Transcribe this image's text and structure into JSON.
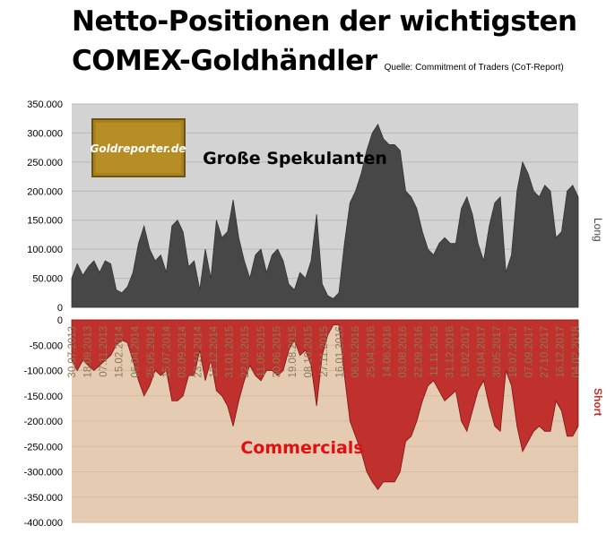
{
  "title_line1": "Netto-Positionen der wichtigsten",
  "title_line2": "COMEX-Goldhändler",
  "source": "Quelle: Commitment of Traders (CoT-Report)",
  "logo_text": "Goldreporter.de",
  "colors": {
    "long_bg": "#d3d3d3",
    "short_bg": "#e6cbb3",
    "long_area": "#474747",
    "short_area": "#c0302c",
    "short_label": "#e01010"
  },
  "chart_data": {
    "type": "area",
    "x_tick_labels": [
      "30.07.2013",
      "18.09.2013",
      "07.11.2013",
      "15.02.2014",
      "06.04.2014",
      "25.05.2014",
      "15.07.2014",
      "03.09.2014",
      "23.10.2014",
      "12.12.2014",
      "31.01.2015",
      "22.03.2015",
      "11.05.2015",
      "30.06.2015",
      "19.08.2015",
      "08.10.2015",
      "27.11.2015",
      "16.01.2016",
      "06.03.2016",
      "25.04.2016",
      "14.06.2016",
      "03.08.2016",
      "22.09.2016",
      "11.11.2016",
      "31.12.2016",
      "19.02.2017",
      "10.04.2017",
      "30.05.2017",
      "19.07.2017",
      "07.09.2017",
      "27.10.2017",
      "16.12.2017",
      "04.02.2018"
    ],
    "top_panel": {
      "label": "Große Spekulanten",
      "side_label": "Long",
      "ylim": [
        0,
        350000
      ],
      "y_ticks": [
        "350.000",
        "300.000",
        "250.000",
        "200.000",
        "150.000",
        "100.000",
        "50.000",
        "0"
      ],
      "values": [
        50000,
        75000,
        55000,
        70000,
        80000,
        60000,
        80000,
        75000,
        30000,
        25000,
        35000,
        60000,
        110000,
        140000,
        100000,
        80000,
        90000,
        60000,
        140000,
        150000,
        130000,
        70000,
        80000,
        30000,
        100000,
        50000,
        150000,
        120000,
        130000,
        185000,
        120000,
        80000,
        50000,
        90000,
        100000,
        60000,
        90000,
        100000,
        80000,
        40000,
        30000,
        60000,
        50000,
        80000,
        160000,
        40000,
        20000,
        15000,
        25000,
        110000,
        180000,
        200000,
        230000,
        270000,
        300000,
        315000,
        290000,
        280000,
        280000,
        270000,
        200000,
        190000,
        170000,
        130000,
        100000,
        90000,
        110000,
        120000,
        110000,
        110000,
        170000,
        190000,
        160000,
        110000,
        80000,
        140000,
        180000,
        190000,
        60000,
        90000,
        200000,
        250000,
        230000,
        200000,
        190000,
        210000,
        200000,
        120000,
        130000,
        200000,
        210000,
        190000
      ]
    },
    "bottom_panel": {
      "label": "Commercials",
      "side_label": "Short",
      "ylim": [
        -400000,
        0
      ],
      "y_ticks": [
        "0",
        "-50.000",
        "-100.000",
        "-150.000",
        "-200.000",
        "-250.000",
        "-300.000",
        "-350.000",
        "-400.000"
      ],
      "values": [
        -80000,
        -100000,
        -80000,
        -90000,
        -100000,
        -90000,
        -80000,
        -70000,
        -50000,
        -40000,
        -45000,
        -80000,
        -120000,
        -150000,
        -130000,
        -100000,
        -110000,
        -100000,
        -160000,
        -160000,
        -150000,
        -110000,
        -110000,
        -60000,
        -120000,
        -80000,
        -140000,
        -150000,
        -170000,
        -210000,
        -160000,
        -120000,
        -90000,
        -110000,
        -120000,
        -100000,
        -100000,
        -110000,
        -100000,
        -60000,
        -40000,
        -70000,
        -60000,
        -90000,
        -170000,
        -70000,
        -30000,
        -10000,
        -10000,
        -110000,
        -200000,
        -230000,
        -260000,
        -300000,
        -320000,
        -335000,
        -320000,
        -320000,
        -320000,
        -300000,
        -240000,
        -230000,
        -200000,
        -160000,
        -130000,
        -120000,
        -140000,
        -160000,
        -150000,
        -140000,
        -200000,
        -220000,
        -180000,
        -140000,
        -120000,
        -170000,
        -210000,
        -220000,
        -100000,
        -130000,
        -210000,
        -260000,
        -240000,
        -220000,
        -210000,
        -220000,
        -220000,
        -160000,
        -180000,
        -230000,
        -230000,
        -210000
      ]
    }
  }
}
